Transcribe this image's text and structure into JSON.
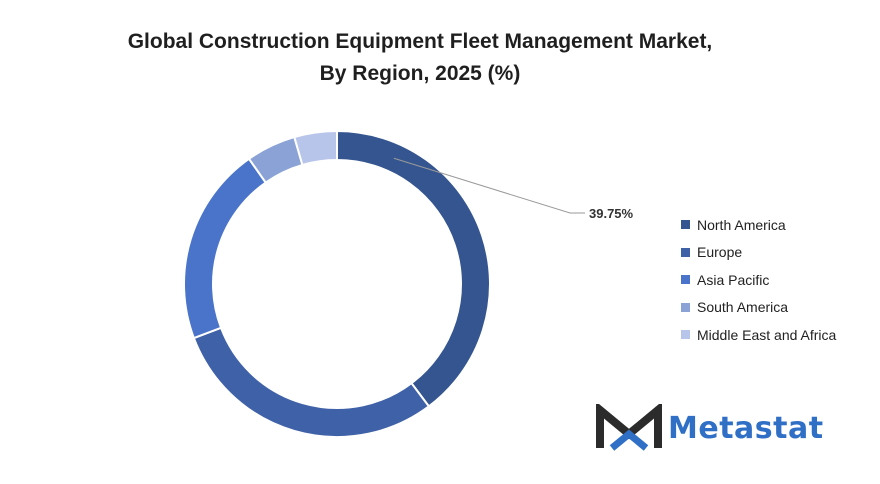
{
  "title_line1": "Global Construction Equipment Fleet Management Market,",
  "title_line2": "By Region, 2025 (%)",
  "brand": {
    "name": "Metastat",
    "color": "#2f6fc6",
    "mark_color": "#2b2b2b"
  },
  "chart_data": {
    "type": "pie",
    "style": "donut",
    "title": "Global Construction Equipment Fleet Management Market, By Region, 2025 (%)",
    "categories": [
      "North America",
      "Europe",
      "Asia Pacific",
      "South America",
      "Middle East and Africa"
    ],
    "values": [
      39.75,
      29.5,
      21.0,
      5.25,
      4.5
    ],
    "colors": [
      "#34558f",
      "#3f61a8",
      "#4a74c9",
      "#8aa2d6",
      "#b8c5ea"
    ],
    "data_labels": [
      {
        "category": "North America",
        "text": "39.75%"
      }
    ],
    "legend_position": "right"
  }
}
